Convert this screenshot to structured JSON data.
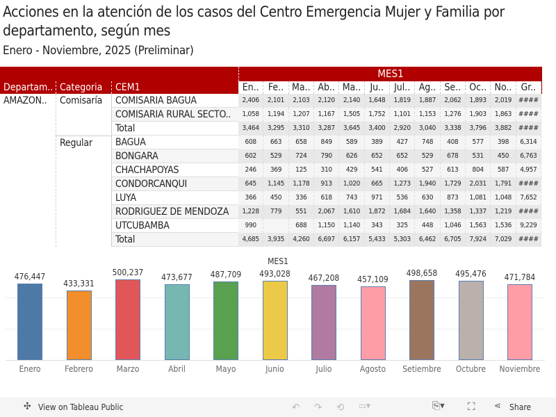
{
  "title": "Acciones en la atención de los casos del Centro Emergencia Mujer y Familia por departamento, según mes",
  "subtitle": "Enero - Noviembre, 2025 (Preliminar)",
  "table": {
    "mes_header": "MES1",
    "row_headers": [
      "Departam..",
      "Categoria",
      "CEM1"
    ],
    "month_headers": [
      "En..",
      "Fe..",
      "Ma..",
      "Ab..",
      "Ma..",
      "Ju..",
      "Jul..",
      "Ag..",
      "Se..",
      "Oc..",
      "No..",
      "Gr.."
    ],
    "departamento": "AMAZON..",
    "groups": [
      {
        "categoria": "Comisaría",
        "rows": [
          {
            "cem": "COMISARIA BAGUA",
            "values": [
              "2,406",
              "2,101",
              "2,103",
              "2,120",
              "2,140",
              "1,648",
              "1,819",
              "1,887",
              "2,062",
              "1,893",
              "2,019",
              "####"
            ]
          },
          {
            "cem": "COMISARIA RURAL SECTO..",
            "values": [
              "1,058",
              "1,194",
              "1,207",
              "1,167",
              "1,505",
              "1,752",
              "1,101",
              "1,153",
              "1,276",
              "1,903",
              "1,863",
              "####"
            ]
          },
          {
            "cem": "Total",
            "values": [
              "3,464",
              "3,295",
              "3,310",
              "3,287",
              "3,645",
              "3,400",
              "2,920",
              "3,040",
              "3,338",
              "3,796",
              "3,882",
              "####"
            ]
          }
        ]
      },
      {
        "categoria": "Regular",
        "rows": [
          {
            "cem": "BAGUA",
            "values": [
              "608",
              "663",
              "658",
              "849",
              "589",
              "389",
              "427",
              "748",
              "408",
              "577",
              "398",
              "6,314"
            ]
          },
          {
            "cem": "BONGARA",
            "values": [
              "602",
              "529",
              "724",
              "790",
              "626",
              "652",
              "652",
              "529",
              "678",
              "531",
              "450",
              "6,763"
            ]
          },
          {
            "cem": "CHACHAPOYAS",
            "values": [
              "246",
              "369",
              "125",
              "310",
              "429",
              "541",
              "406",
              "527",
              "613",
              "804",
              "587",
              "4,957"
            ]
          },
          {
            "cem": "CONDORCANQUI",
            "values": [
              "645",
              "1,145",
              "1,178",
              "913",
              "1,020",
              "665",
              "1,273",
              "1,940",
              "1,729",
              "2,031",
              "1,791",
              "####"
            ]
          },
          {
            "cem": "LUYA",
            "values": [
              "366",
              "450",
              "336",
              "618",
              "743",
              "971",
              "536",
              "630",
              "873",
              "1,081",
              "1,048",
              "7,652"
            ]
          },
          {
            "cem": "RODRIGUEZ DE MENDOZA",
            "values": [
              "1,228",
              "779",
              "551",
              "2,067",
              "1,610",
              "1,872",
              "1,684",
              "1,640",
              "1,358",
              "1,337",
              "1,219",
              "####"
            ]
          },
          {
            "cem": "UTCUBAMBA",
            "values": [
              "990",
              "",
              "688",
              "1,150",
              "1,140",
              "343",
              "325",
              "448",
              "1,046",
              "1,563",
              "1,536",
              "9,229"
            ]
          },
          {
            "cem": "Total",
            "values": [
              "4,685",
              "3,935",
              "4,260",
              "6,697",
              "6,157",
              "5,433",
              "5,303",
              "6,462",
              "6,705",
              "7,924",
              "7,029",
              "####"
            ]
          }
        ]
      }
    ]
  },
  "chart_data": {
    "type": "bar",
    "title": "MES1",
    "categories": [
      "Enero",
      "Febrero",
      "Marzo",
      "Abril",
      "Mayo",
      "Junio",
      "Julio",
      "Agosto",
      "Setiembre",
      "Octubre",
      "Noviembre"
    ],
    "values": [
      476447,
      433331,
      500237,
      473677,
      487709,
      493028,
      467208,
      457109,
      498658,
      495476,
      471784
    ],
    "labels": [
      "476,447",
      "433,331",
      "500,237",
      "473,677",
      "487,709",
      "493,028",
      "467,208",
      "457,109",
      "498,658",
      "495,476",
      "471,784"
    ],
    "colors": [
      "#4e79a7",
      "#f28e2b",
      "#e15759",
      "#76b7b2",
      "#59a14f",
      "#edc948",
      "#b07aa1",
      "#ff9da7",
      "#9c755f",
      "#bab0ac",
      "#ff9da7"
    ],
    "ylim": [
      0,
      580000
    ]
  },
  "footer": {
    "view_label": "View on Tableau Public",
    "share_label": "Share"
  }
}
